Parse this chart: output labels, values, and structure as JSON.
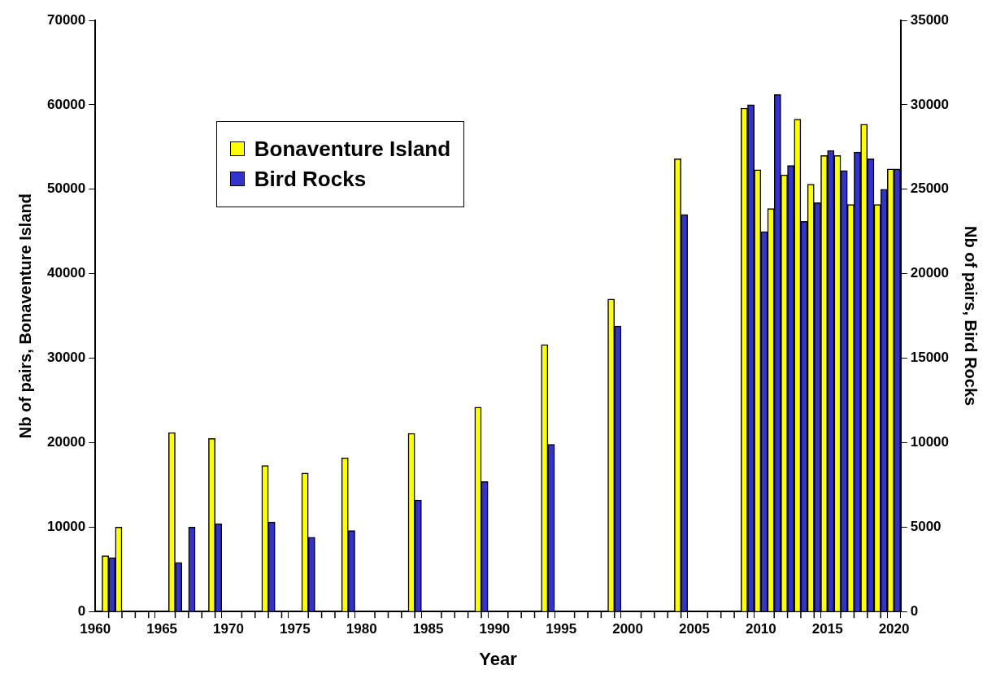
{
  "chart_data": {
    "type": "bar",
    "xlabel": "Year",
    "ylabel": "Nb of pairs, Bonaventure Island",
    "y2label": "Nb of pairs, Bird Rocks",
    "x": [
      1961,
      1962,
      1966,
      1967,
      1969,
      1973,
      1976,
      1979,
      1984,
      1989,
      1994,
      1999,
      2004,
      2009,
      2010,
      2011,
      2012,
      2013,
      2014,
      2015,
      2016,
      2017,
      2018,
      2019,
      2020
    ],
    "series": [
      {
        "name": "Bonaventure Island",
        "color": "#ffff00",
        "values": [
          6600,
          10000,
          21200,
          null,
          20500,
          17300,
          16400,
          18200,
          21100,
          24200,
          31600,
          37000,
          53600,
          59600,
          52300,
          47700,
          51700,
          58300,
          50600,
          54000,
          54000,
          48200,
          57700,
          48200,
          52400
        ]
      },
      {
        "name": "Bird Rocks",
        "color": "#3333cc",
        "axis": "y2",
        "values": [
          3200,
          null,
          2900,
          5000,
          5200,
          5300,
          4400,
          4800,
          6600,
          7700,
          9900,
          16900,
          23500,
          30000,
          22500,
          30600,
          26400,
          23100,
          24200,
          27300,
          26100,
          27200,
          26800,
          25000,
          26200
        ]
      }
    ],
    "xlim": [
      1960,
      2020.5
    ],
    "xticks": [
      1960,
      {
        "value": 1961,
        "label": null
      },
      {
        "value": 1962,
        "label": null
      },
      {
        "value": 1963,
        "label": null
      },
      {
        "value": 1964,
        "label": null
      },
      1965,
      {
        "value": 1966,
        "label": null
      },
      {
        "value": 1967,
        "label": null
      },
      {
        "value": 1968,
        "label": null
      },
      {
        "value": 1969,
        "label": null
      },
      1970,
      {
        "value": 1971,
        "label": null
      },
      {
        "value": 1972,
        "label": null
      },
      {
        "value": 1973,
        "label": null
      },
      {
        "value": 1974,
        "label": null
      },
      1975,
      {
        "value": 1976,
        "label": null
      },
      {
        "value": 1977,
        "label": null
      },
      {
        "value": 1978,
        "label": null
      },
      {
        "value": 1979,
        "label": null
      },
      1980,
      {
        "value": 1981,
        "label": null
      },
      {
        "value": 1982,
        "label": null
      },
      {
        "value": 1983,
        "label": null
      },
      {
        "value": 1984,
        "label": null
      },
      1985,
      {
        "value": 1986,
        "label": null
      },
      {
        "value": 1987,
        "label": null
      },
      {
        "value": 1988,
        "label": null
      },
      {
        "value": 1989,
        "label": null
      },
      1990,
      {
        "value": 1991,
        "label": null
      },
      {
        "value": 1992,
        "label": null
      },
      {
        "value": 1993,
        "label": null
      },
      {
        "value": 1994,
        "label": null
      },
      1995,
      {
        "value": 1996,
        "label": null
      },
      {
        "value": 1997,
        "label": null
      },
      {
        "value": 1998,
        "label": null
      },
      {
        "value": 1999,
        "label": null
      },
      2000,
      {
        "value": 2001,
        "label": null
      },
      {
        "value": 2002,
        "label": null
      },
      {
        "value": 2003,
        "label": null
      },
      {
        "value": 2004,
        "label": null
      },
      2005,
      {
        "value": 2006,
        "label": null
      },
      {
        "value": 2007,
        "label": null
      },
      {
        "value": 2008,
        "label": null
      },
      {
        "value": 2009,
        "label": null
      },
      2010,
      {
        "value": 2011,
        "label": null
      },
      {
        "value": 2012,
        "label": null
      },
      {
        "value": 2013,
        "label": null
      },
      {
        "value": 2014,
        "label": null
      },
      2015,
      {
        "value": 2016,
        "label": null
      },
      {
        "value": 2017,
        "label": null
      },
      {
        "value": 2018,
        "label": null
      },
      {
        "value": 2019,
        "label": null
      },
      2020
    ],
    "ylim": [
      0,
      70000
    ],
    "yticks": [
      0,
      10000,
      20000,
      30000,
      40000,
      50000,
      60000,
      70000
    ],
    "y2lim": [
      0,
      35000
    ],
    "y2ticks": [
      0,
      5000,
      10000,
      15000,
      20000,
      25000,
      30000,
      35000
    ],
    "grid": false,
    "legend": "top left"
  }
}
